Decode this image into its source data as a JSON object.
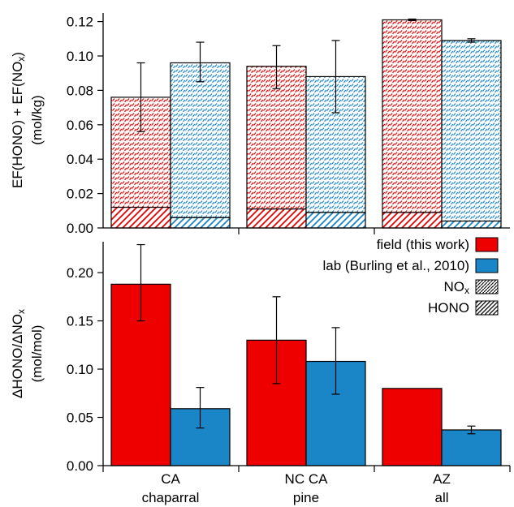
{
  "chart_data": [
    {
      "type": "bar",
      "stacked": true,
      "categories": [
        "CA chaparral",
        "NC CA pine",
        "AZ all"
      ],
      "ylabel_line1": "EF(HONO) + EF(NO",
      "ylabel_sub": "x",
      "ylabel_line1_end": ")",
      "ylabel_line2": "(mol/kg)",
      "ylim": [
        0,
        0.125
      ],
      "yticks": [
        "0.00",
        "0.02",
        "0.04",
        "0.06",
        "0.08",
        "0.10",
        "0.12"
      ],
      "ytick_values": [
        0.0,
        0.02,
        0.04,
        0.06,
        0.08,
        0.1,
        0.12
      ],
      "series": [
        {
          "name": "field (this work)",
          "color": "#ee0000",
          "hono": [
            0.012,
            0.011,
            0.009
          ],
          "total": [
            0.076,
            0.094,
            0.121
          ],
          "err_low": [
            0.056,
            0.081,
            0.121
          ],
          "err_high": [
            0.096,
            0.106,
            0.121
          ]
        },
        {
          "name": "lab (Burling et al., 2010)",
          "color": "#1a86c8",
          "hono": [
            0.006,
            0.009,
            0.004
          ],
          "total": [
            0.096,
            0.088,
            0.109
          ],
          "err_low": [
            0.085,
            0.067,
            0.108
          ],
          "err_high": [
            0.108,
            0.109,
            0.11
          ]
        }
      ]
    },
    {
      "type": "bar",
      "categories": [
        "CA chaparral",
        "NC CA pine",
        "AZ all"
      ],
      "category_line1": [
        "CA",
        "NC CA",
        "AZ"
      ],
      "category_line2": [
        "chaparral",
        "pine",
        "all"
      ],
      "ylabel_line1": "ΔHONO/ΔNO",
      "ylabel_sub": "x",
      "ylabel_line2": "(mol/mol)",
      "ylim": [
        0,
        0.232
      ],
      "yticks": [
        "0.00",
        "0.05",
        "0.10",
        "0.15",
        "0.20"
      ],
      "ytick_values": [
        0.0,
        0.05,
        0.1,
        0.15,
        0.2
      ],
      "series": [
        {
          "name": "field (this work)",
          "color": "#ee0000",
          "values": [
            0.188,
            0.13,
            0.08
          ],
          "err_low": [
            0.15,
            0.085,
            0.08
          ],
          "err_high": [
            0.229,
            0.175,
            0.08
          ]
        },
        {
          "name": "lab (Burling et al., 2010)",
          "color": "#1a86c8",
          "values": [
            0.059,
            0.108,
            0.037
          ],
          "err_low": [
            0.039,
            0.074,
            0.033
          ],
          "err_high": [
            0.081,
            0.143,
            0.041
          ]
        }
      ],
      "legend": {
        "placement": "top-right",
        "entries": [
          {
            "label": "field (this work)",
            "kind": "color",
            "color": "#ee0000"
          },
          {
            "label": "lab (Burling et al., 2010)",
            "kind": "color",
            "color": "#1a86c8"
          },
          {
            "label": "NO",
            "sub": "x",
            "kind": "pattern-nox"
          },
          {
            "label": "HONO",
            "kind": "pattern-hono"
          }
        ]
      }
    }
  ]
}
